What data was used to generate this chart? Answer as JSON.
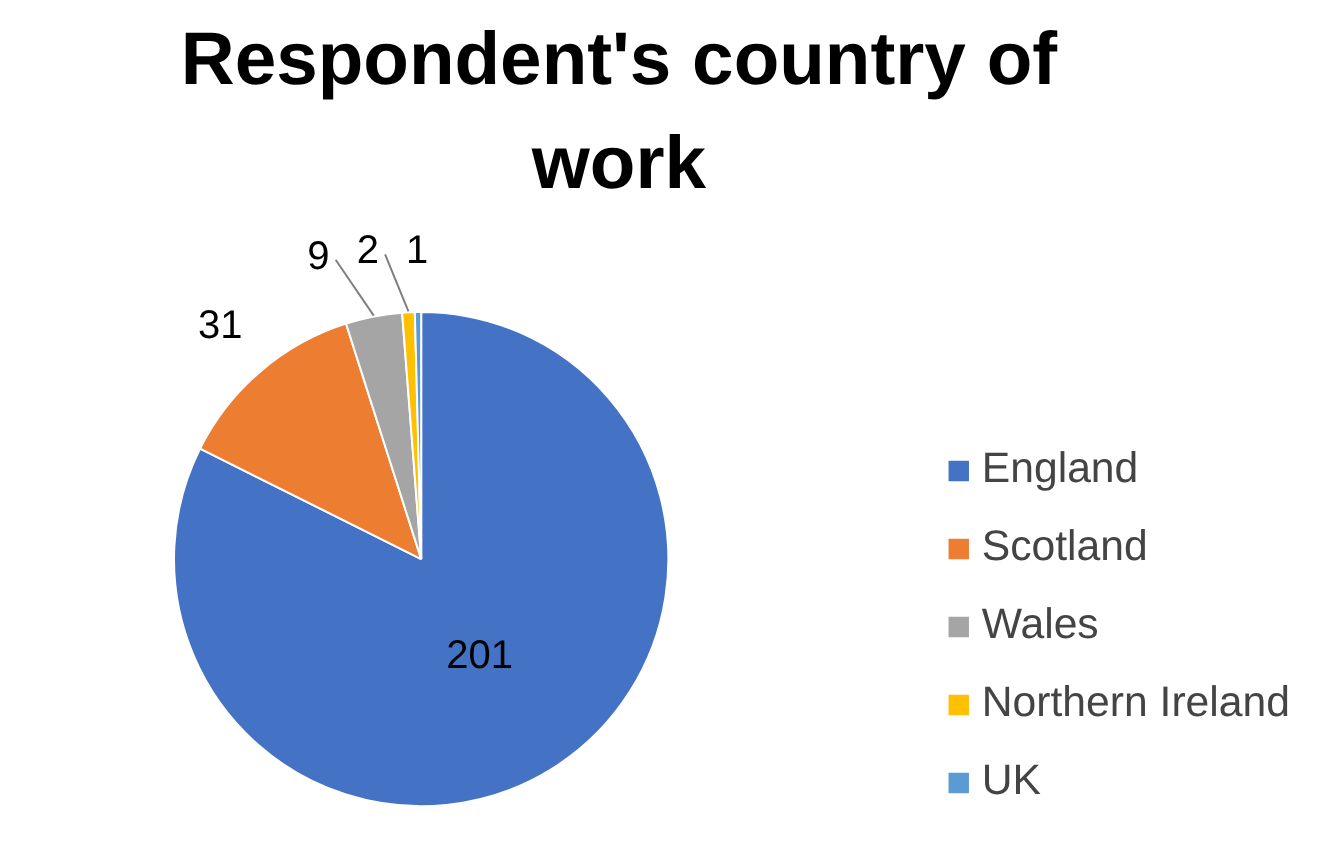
{
  "chart_data": {
    "type": "pie",
    "title": "Respondent's country of work",
    "categories": [
      "England",
      "Scotland",
      "Wales",
      "Northern Ireland",
      "UK"
    ],
    "values": [
      201,
      31,
      9,
      2,
      1
    ],
    "colors": [
      "#4472c4",
      "#ed7d31",
      "#a5a5a5",
      "#ffc000",
      "#5b9bd5"
    ],
    "data_labels": true,
    "legend": "right"
  }
}
